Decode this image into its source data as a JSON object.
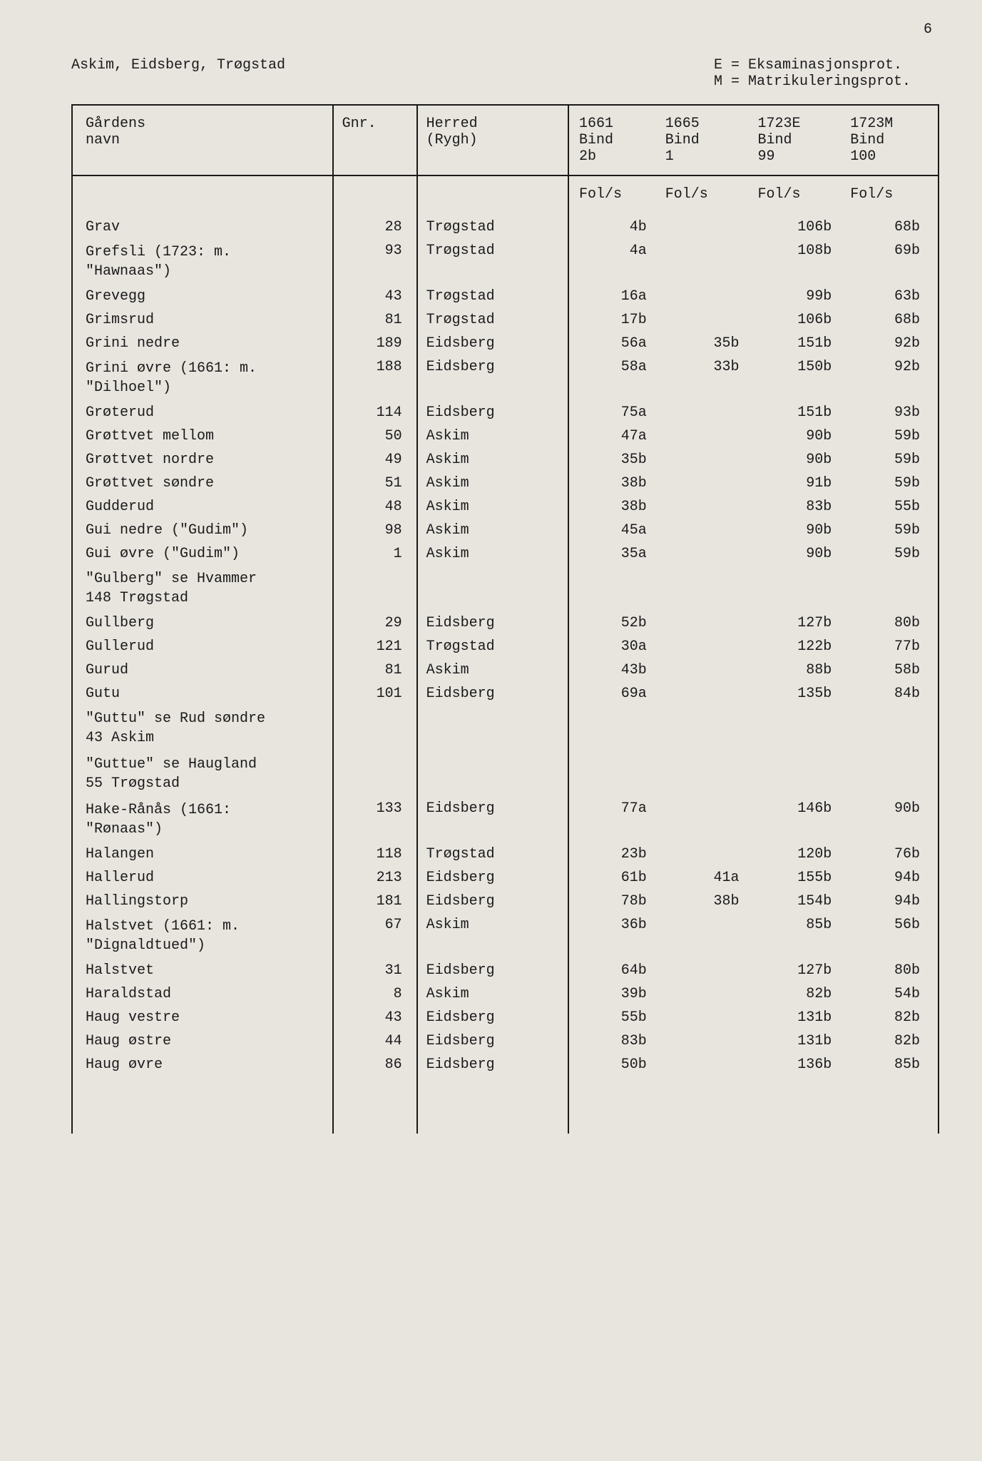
{
  "page_number": "6",
  "header": {
    "left": "Askim, Eidsberg, Trøgstad",
    "right_line1": "E = Eksaminasjonsprot.",
    "right_line2": "M = Matrikuleringsprot."
  },
  "table": {
    "columns": {
      "name": {
        "line1": "Gårdens",
        "line2": "navn"
      },
      "gnr": {
        "line1": "Gnr."
      },
      "herred": {
        "line1": "Herred",
        "line2": "(Rygh)"
      },
      "c1661": {
        "line1": "1661",
        "line2": "Bind",
        "line3": "2b"
      },
      "c1665": {
        "line1": "1665",
        "line2": "Bind",
        "line3": "1"
      },
      "c1723e": {
        "line1": "1723E",
        "line2": "Bind",
        "line3": "99"
      },
      "c1723m": {
        "line1": "1723M",
        "line2": "Bind",
        "line3": "100"
      }
    },
    "fols_label": "Fol/s",
    "rows": [
      {
        "name": "Grav",
        "gnr": "28",
        "herred": "Trøgstad",
        "c1661": "4b",
        "c1665": "",
        "c1723e": "106b",
        "c1723m": "68b"
      },
      {
        "name": "Grefsli (1723: m.\n\"Hawnaas\")",
        "gnr": "93",
        "herred": "Trøgstad",
        "c1661": "4a",
        "c1665": "",
        "c1723e": "108b",
        "c1723m": "69b"
      },
      {
        "name": "Grevegg",
        "gnr": "43",
        "herred": "Trøgstad",
        "c1661": "16a",
        "c1665": "",
        "c1723e": "99b",
        "c1723m": "63b"
      },
      {
        "name": "Grimsrud",
        "gnr": "81",
        "herred": "Trøgstad",
        "c1661": "17b",
        "c1665": "",
        "c1723e": "106b",
        "c1723m": "68b"
      },
      {
        "name": "Grini nedre",
        "gnr": "189",
        "herred": "Eidsberg",
        "c1661": "56a",
        "c1665": "35b",
        "c1723e": "151b",
        "c1723m": "92b"
      },
      {
        "name": "Grini øvre (1661: m.\n\"Dilhoel\")",
        "gnr": "188",
        "herred": "Eidsberg",
        "c1661": "58a",
        "c1665": "33b",
        "c1723e": "150b",
        "c1723m": "92b"
      },
      {
        "name": "Grøterud",
        "gnr": "114",
        "herred": "Eidsberg",
        "c1661": "75a",
        "c1665": "",
        "c1723e": "151b",
        "c1723m": "93b"
      },
      {
        "name": "Grøttvet mellom",
        "gnr": "50",
        "herred": "Askim",
        "c1661": "47a",
        "c1665": "",
        "c1723e": "90b",
        "c1723m": "59b"
      },
      {
        "name": "Grøttvet nordre",
        "gnr": "49",
        "herred": "Askim",
        "c1661": "35b",
        "c1665": "",
        "c1723e": "90b",
        "c1723m": "59b"
      },
      {
        "name": "Grøttvet søndre",
        "gnr": "51",
        "herred": "Askim",
        "c1661": "38b",
        "c1665": "",
        "c1723e": "91b",
        "c1723m": "59b"
      },
      {
        "name": "Gudderud",
        "gnr": "48",
        "herred": "Askim",
        "c1661": "38b",
        "c1665": "",
        "c1723e": "83b",
        "c1723m": "55b"
      },
      {
        "name": "Gui nedre (\"Gudim\")",
        "gnr": "98",
        "herred": "Askim",
        "c1661": "45a",
        "c1665": "",
        "c1723e": "90b",
        "c1723m": "59b"
      },
      {
        "name": "Gui øvre (\"Gudim\")",
        "gnr": "1",
        "herred": "Askim",
        "c1661": "35a",
        "c1665": "",
        "c1723e": "90b",
        "c1723m": "59b"
      },
      {
        "name": "\"Gulberg\" se Hvammer\n148 Trøgstad",
        "gnr": "",
        "herred": "",
        "c1661": "",
        "c1665": "",
        "c1723e": "",
        "c1723m": ""
      },
      {
        "name": "Gullberg",
        "gnr": "29",
        "herred": "Eidsberg",
        "c1661": "52b",
        "c1665": "",
        "c1723e": "127b",
        "c1723m": "80b"
      },
      {
        "name": "Gullerud",
        "gnr": "121",
        "herred": "Trøgstad",
        "c1661": "30a",
        "c1665": "",
        "c1723e": "122b",
        "c1723m": "77b"
      },
      {
        "name": "Gurud",
        "gnr": "81",
        "herred": "Askim",
        "c1661": "43b",
        "c1665": "",
        "c1723e": "88b",
        "c1723m": "58b"
      },
      {
        "name": "Gutu",
        "gnr": "101",
        "herred": "Eidsberg",
        "c1661": "69a",
        "c1665": "",
        "c1723e": "135b",
        "c1723m": "84b"
      },
      {
        "name": "\"Guttu\" se Rud søndre\n43 Askim",
        "gnr": "",
        "herred": "",
        "c1661": "",
        "c1665": "",
        "c1723e": "",
        "c1723m": ""
      },
      {
        "name": "\"Guttue\" se Haugland\n55 Trøgstad",
        "gnr": "",
        "herred": "",
        "c1661": "",
        "c1665": "",
        "c1723e": "",
        "c1723m": ""
      },
      {
        "name": "Hake-Rånås (1661:\n\"Rønaas\")",
        "gnr": "133",
        "herred": "Eidsberg",
        "c1661": "77a",
        "c1665": "",
        "c1723e": "146b",
        "c1723m": "90b"
      },
      {
        "name": "Halangen",
        "gnr": "118",
        "herred": "Trøgstad",
        "c1661": "23b",
        "c1665": "",
        "c1723e": "120b",
        "c1723m": "76b"
      },
      {
        "name": "Hallerud",
        "gnr": "213",
        "herred": "Eidsberg",
        "c1661": "61b",
        "c1665": "41a",
        "c1723e": "155b",
        "c1723m": "94b"
      },
      {
        "name": "Hallingstorp",
        "gnr": "181",
        "herred": "Eidsberg",
        "c1661": "78b",
        "c1665": "38b",
        "c1723e": "154b",
        "c1723m": "94b"
      },
      {
        "name": "Halstvet (1661: m.\n\"Dignaldtued\")",
        "gnr": "67",
        "herred": "Askim",
        "c1661": "36b",
        "c1665": "",
        "c1723e": "85b",
        "c1723m": "56b"
      },
      {
        "name": "Halstvet",
        "gnr": "31",
        "herred": "Eidsberg",
        "c1661": "64b",
        "c1665": "",
        "c1723e": "127b",
        "c1723m": "80b"
      },
      {
        "name": "Haraldstad",
        "gnr": "8",
        "herred": "Askim",
        "c1661": "39b",
        "c1665": "",
        "c1723e": "82b",
        "c1723m": "54b"
      },
      {
        "name": "Haug vestre",
        "gnr": "43",
        "herred": "Eidsberg",
        "c1661": "55b",
        "c1665": "",
        "c1723e": "131b",
        "c1723m": "82b"
      },
      {
        "name": "Haug østre",
        "gnr": "44",
        "herred": "Eidsberg",
        "c1661": "83b",
        "c1665": "",
        "c1723e": "131b",
        "c1723m": "82b"
      },
      {
        "name": "Haug øvre",
        "gnr": "86",
        "herred": "Eidsberg",
        "c1661": "50b",
        "c1665": "",
        "c1723e": "136b",
        "c1723m": "85b"
      }
    ]
  }
}
